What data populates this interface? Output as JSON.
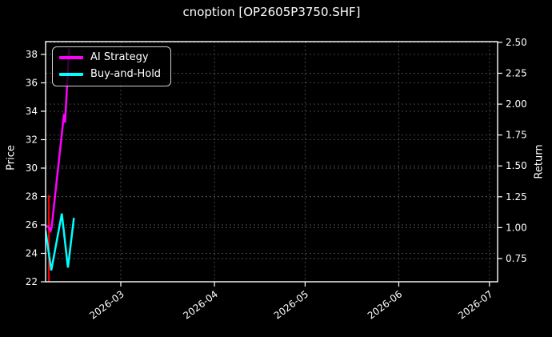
{
  "chart_data": {
    "type": "line",
    "title": "cnoption [OP2605P3750.SHF]",
    "background_color": "#000000",
    "text_color": "#ffffff",
    "grid": {
      "visible": true,
      "style": "dashed",
      "color": "#4d4d4d"
    },
    "x_axis": {
      "unit": "date",
      "epoch": "2026-02-01",
      "domain_days": [
        3.12,
        152.7
      ],
      "tick_rotation_deg": -37,
      "ticks": [
        {
          "day": 28,
          "label": "2026-03"
        },
        {
          "day": 59,
          "label": "2026-04"
        },
        {
          "day": 89,
          "label": "2026-05"
        },
        {
          "day": 120,
          "label": "2026-06"
        },
        {
          "day": 150,
          "label": "2026-07"
        }
      ]
    },
    "price_axis": {
      "label": "Price",
      "side": "left",
      "domain": [
        22,
        38.9
      ],
      "ticks": [
        {
          "v": 22,
          "label": "22"
        },
        {
          "v": 24,
          "label": "24"
        },
        {
          "v": 26,
          "label": "26"
        },
        {
          "v": 28,
          "label": "28"
        },
        {
          "v": 30,
          "label": "30"
        },
        {
          "v": 32,
          "label": "32"
        },
        {
          "v": 34,
          "label": "34"
        },
        {
          "v": 36,
          "label": "36"
        },
        {
          "v": 38,
          "label": "38"
        }
      ]
    },
    "return_axis": {
      "label": "Return",
      "side": "right",
      "domain": [
        0.562,
        2.506
      ],
      "ticks": [
        {
          "v": 0.75,
          "label": "0.75"
        },
        {
          "v": 1.0,
          "label": "1.00"
        },
        {
          "v": 1.25,
          "label": "1.25"
        },
        {
          "v": 1.5,
          "label": "1.50"
        },
        {
          "v": 1.75,
          "label": "1.75"
        },
        {
          "v": 2.0,
          "label": "2.00"
        },
        {
          "v": 2.25,
          "label": "2.25"
        },
        {
          "v": 2.5,
          "label": "2.50"
        }
      ]
    },
    "legend": {
      "position": "upper-left",
      "entries": [
        "AI Strategy",
        "Buy-and-Hold"
      ]
    },
    "series": [
      {
        "name": "AI Strategy",
        "color": "#ff00ff",
        "axis": "return",
        "line_width": 2.5,
        "points": [
          {
            "day": 3.12,
            "date": "2026-02-04",
            "value": 1.01
          },
          {
            "day": 4.0,
            "date": "2026-02-05",
            "value": 1.01
          },
          {
            "day": 4.8,
            "date": "2026-02-06",
            "value": 0.975
          },
          {
            "day": 5.1,
            "date": "2026-02-06",
            "value": 1.0
          },
          {
            "day": 9.2,
            "date": "2026-02-10",
            "value": 1.92
          },
          {
            "day": 9.55,
            "date": "2026-02-10",
            "value": 1.85
          },
          {
            "day": 10.9,
            "date": "2026-02-12",
            "value": 2.45
          }
        ]
      },
      {
        "name": "Buy-and-Hold",
        "color": "#00ffff",
        "axis": "price",
        "line_width": 2.5,
        "points": [
          {
            "day": 3.12,
            "date": "2026-02-04",
            "value": 25.6
          },
          {
            "day": 5.0,
            "date": "2026-02-06",
            "value": 22.8
          },
          {
            "day": 8.5,
            "date": "2026-02-09",
            "value": 26.8
          },
          {
            "day": 10.5,
            "date": "2026-02-11",
            "value": 23.0
          },
          {
            "day": 12.5,
            "date": "2026-02-13",
            "value": 26.5
          }
        ]
      }
    ],
    "annotations": [
      {
        "type": "vline",
        "color": "#ff0000",
        "line_width": 2,
        "day": 4.2,
        "date": "2026-02-05",
        "price_from": 22,
        "price_to": 28.1
      }
    ]
  }
}
